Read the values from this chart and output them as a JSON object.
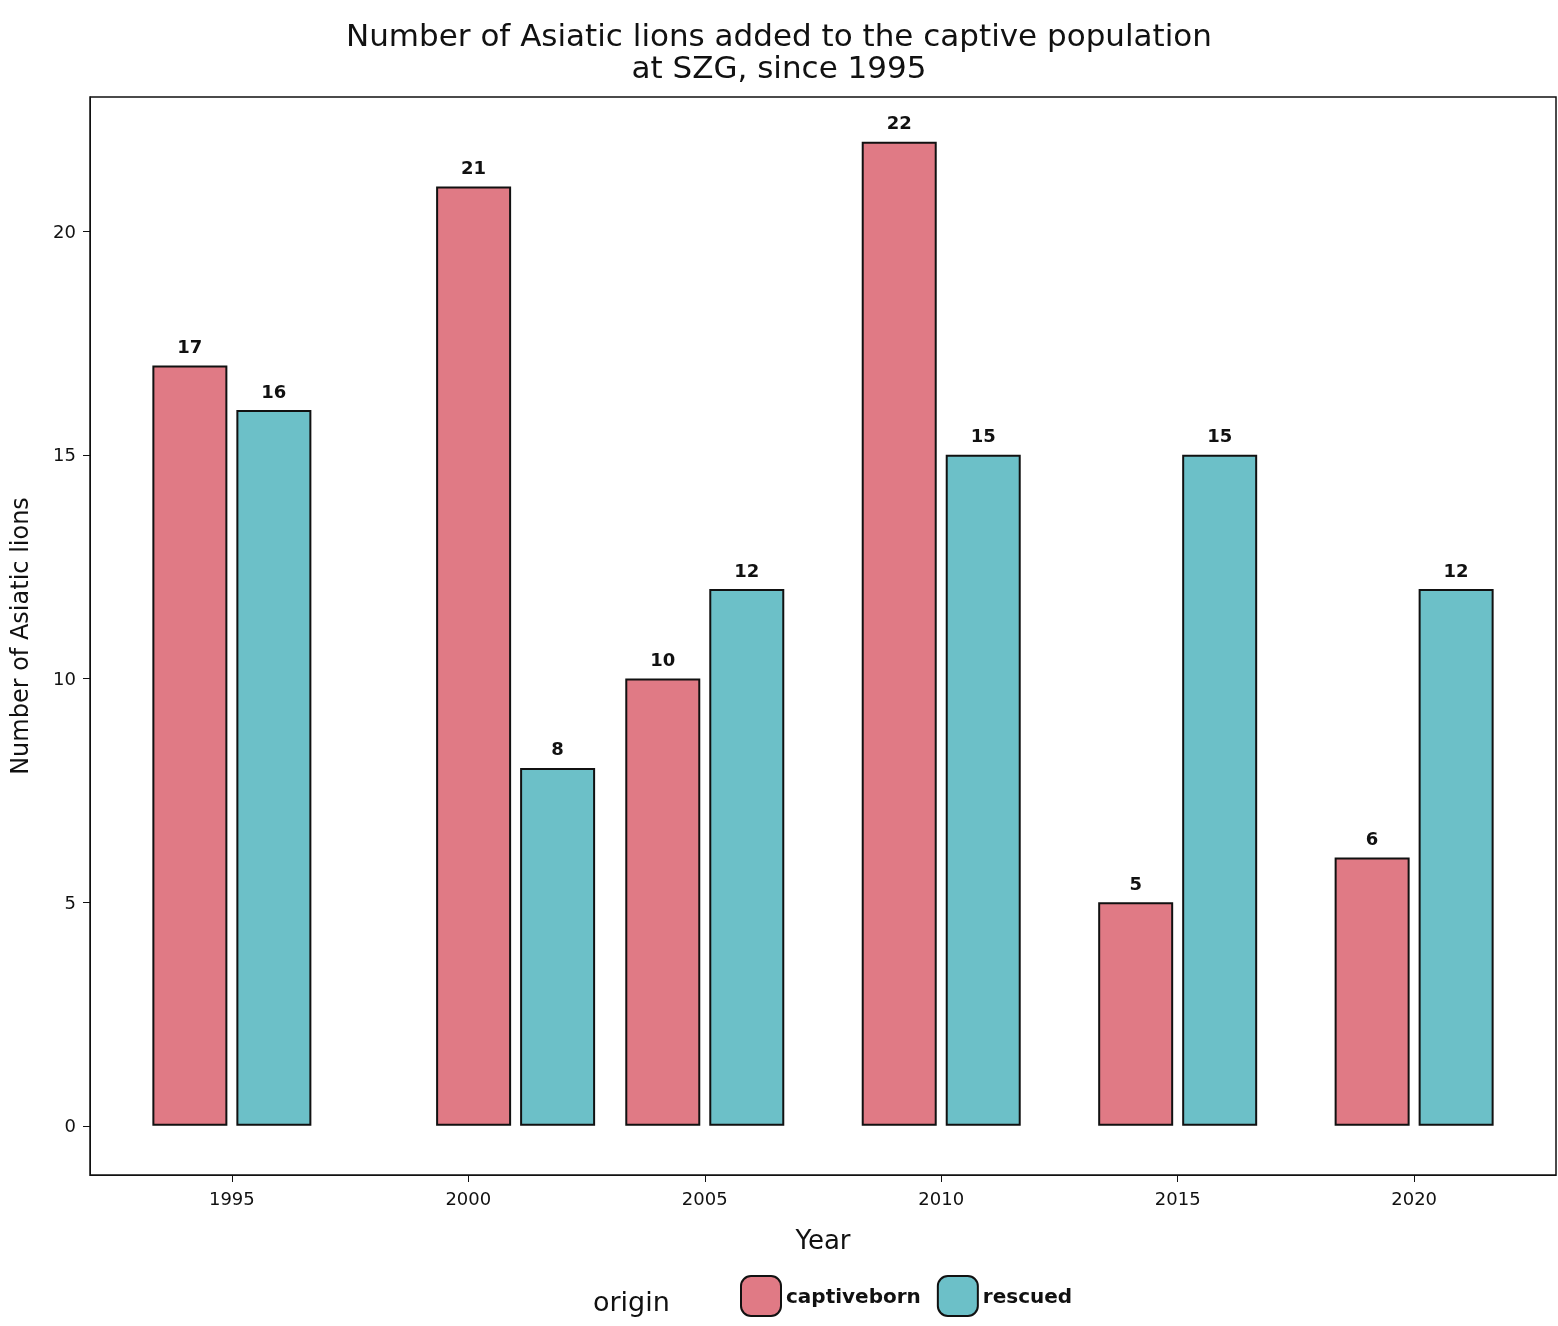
{
  "chart_data": {
    "type": "bar",
    "title": "Number of Asiatic lions added to the captive population\nat SZG, since 1995",
    "xlabel": "Year",
    "ylabel": "Number of Asiatic lions",
    "legend_title": "origin",
    "x": [
      1995,
      2001,
      2005,
      2010,
      2015,
      2020
    ],
    "series": [
      {
        "name": "captiveborn",
        "color": "#e07a85",
        "values": [
          17,
          21,
          10,
          22,
          5,
          6
        ]
      },
      {
        "name": "rescued",
        "color": "#6cc0c8",
        "values": [
          16,
          8,
          12,
          15,
          15,
          12
        ]
      }
    ],
    "xlim": [
      1992,
      2023
    ],
    "xticks": [
      1995,
      2000,
      2005,
      2010,
      2015,
      2020
    ],
    "ylim": [
      -1.1,
      23
    ],
    "yticks": [
      0,
      5,
      10,
      15,
      20
    ],
    "data_labels": true,
    "grid": false,
    "legend": "bottom"
  }
}
